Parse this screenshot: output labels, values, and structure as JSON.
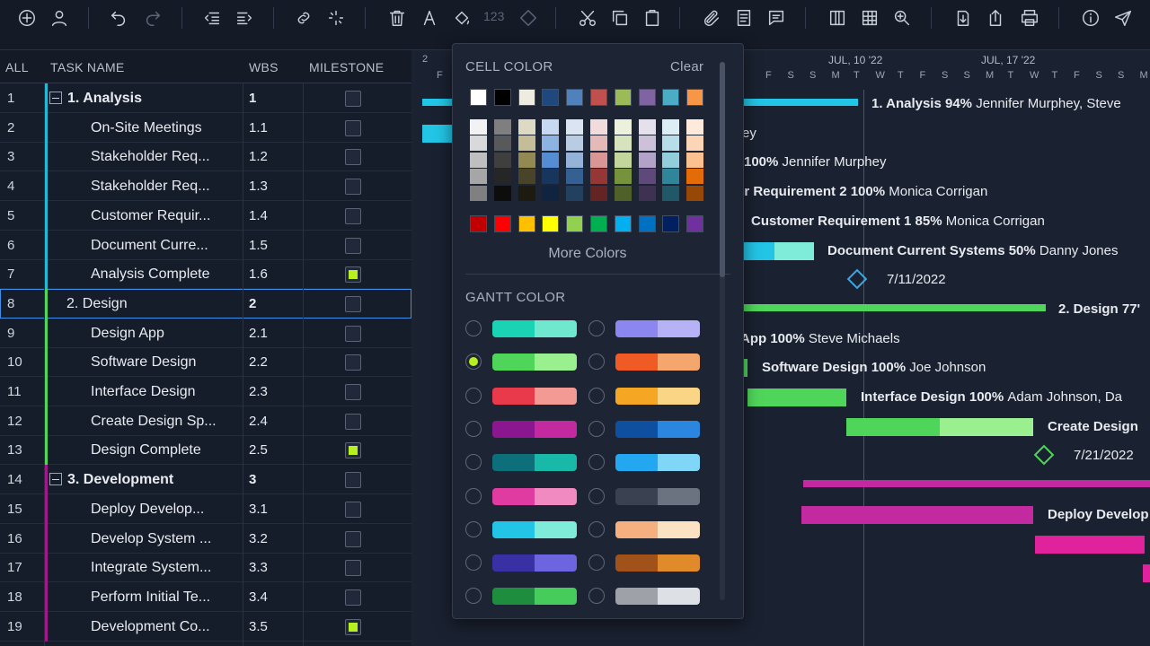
{
  "toolbar": {
    "counter": "123"
  },
  "grid": {
    "headers": {
      "all": "ALL",
      "task_name": "TASK NAME",
      "wbs": "WBS",
      "milestone": "MILESTONE"
    },
    "rows": [
      {
        "num": "1",
        "name": "1. Analysis",
        "wbs": "1",
        "milestone": false,
        "summary": true,
        "color": "#22b8d6"
      },
      {
        "num": "2",
        "name": "On-Site Meetings",
        "wbs": "1.1",
        "milestone": false,
        "summary": false,
        "color": "#22b8d6"
      },
      {
        "num": "3",
        "name": "Stakeholder Req...",
        "wbs": "1.2",
        "milestone": false,
        "summary": false,
        "color": "#22b8d6"
      },
      {
        "num": "4",
        "name": "Stakeholder Req...",
        "wbs": "1.3",
        "milestone": false,
        "summary": false,
        "color": "#22b8d6"
      },
      {
        "num": "5",
        "name": "Customer Requir...",
        "wbs": "1.4",
        "milestone": false,
        "summary": false,
        "color": "#22b8d6"
      },
      {
        "num": "6",
        "name": "Document Curre...",
        "wbs": "1.5",
        "milestone": false,
        "summary": false,
        "color": "#22b8d6"
      },
      {
        "num": "7",
        "name": "Analysis Complete",
        "wbs": "1.6",
        "milestone": true,
        "summary": false,
        "color": "#22b8d6"
      },
      {
        "num": "8",
        "name": "2. Design",
        "wbs": "2",
        "milestone": false,
        "summary": true,
        "color": "#4fd65a"
      },
      {
        "num": "9",
        "name": "Design App",
        "wbs": "2.1",
        "milestone": false,
        "summary": false,
        "color": "#4fd65a"
      },
      {
        "num": "10",
        "name": "Software Design",
        "wbs": "2.2",
        "milestone": false,
        "summary": false,
        "color": "#4fd65a"
      },
      {
        "num": "11",
        "name": "Interface Design",
        "wbs": "2.3",
        "milestone": false,
        "summary": false,
        "color": "#4fd65a"
      },
      {
        "num": "12",
        "name": "Create Design Sp...",
        "wbs": "2.4",
        "milestone": false,
        "summary": false,
        "color": "#4fd65a"
      },
      {
        "num": "13",
        "name": "Design Complete",
        "wbs": "2.5",
        "milestone": true,
        "summary": false,
        "color": "#4fd65a"
      },
      {
        "num": "14",
        "name": "3. Development",
        "wbs": "3",
        "milestone": false,
        "summary": true,
        "color": "#a0198a"
      },
      {
        "num": "15",
        "name": "Deploy Develop...",
        "wbs": "3.1",
        "milestone": false,
        "summary": false,
        "color": "#a0198a"
      },
      {
        "num": "16",
        "name": "Develop System ...",
        "wbs": "3.2",
        "milestone": false,
        "summary": false,
        "color": "#a0198a"
      },
      {
        "num": "17",
        "name": "Integrate System...",
        "wbs": "3.3",
        "milestone": false,
        "summary": false,
        "color": "#a0198a"
      },
      {
        "num": "18",
        "name": "Perform Initial Te...",
        "wbs": "3.4",
        "milestone": false,
        "summary": false,
        "color": "#a0198a"
      },
      {
        "num": "19",
        "name": "Development Co...",
        "wbs": "3.5",
        "milestone": true,
        "summary": false,
        "color": "#a0198a"
      }
    ]
  },
  "gantt": {
    "months": [
      "JUL, 10 '22",
      "JUL, 17 '22"
    ],
    "days_left": [
      "2",
      "F"
    ],
    "days": [
      "F",
      "S",
      "S",
      "M",
      "T",
      "W",
      "T",
      "F",
      "S",
      "S",
      "M",
      "T",
      "W",
      "T",
      "F",
      "S",
      "S",
      "M",
      "T"
    ],
    "labels": {
      "analysis": {
        "name": "1. Analysis",
        "pct": "94%",
        "who": "Jennifer Murphey, Steve"
      },
      "onsite": {
        "name": "",
        "pct": "",
        "who": "ey"
      },
      "sreq1": {
        "name": "",
        "pct": "100%",
        "who": "Jennifer Murphey"
      },
      "sreq2": {
        "name": "er Requirement 2",
        "pct": "100%",
        "who": "Monica Corrigan"
      },
      "creq": {
        "name": "Customer Requirement 1",
        "pct": "85%",
        "who": "Monica Corrigan"
      },
      "doc": {
        "name": "Document Current Systems",
        "pct": "50%",
        "who": "Danny Jones"
      },
      "ms1": "7/11/2022",
      "design": {
        "name": "2. Design",
        "pct": "77'"
      },
      "app": {
        "name": "App",
        "pct": "100%",
        "who": "Steve Michaels"
      },
      "soft": {
        "name": "Software Design",
        "pct": "100%",
        "who": "Joe Johnson"
      },
      "iface": {
        "name": "Interface Design",
        "pct": "100%",
        "who": "Adam Johnson, Da"
      },
      "cds": {
        "name": "Create Design"
      },
      "ms2": "7/21/2022",
      "deploy": {
        "name": "Deploy Develop"
      }
    }
  },
  "popup": {
    "cell_color_title": "CELL COLOR",
    "clear": "Clear",
    "more_colors": "More Colors",
    "gantt_color_title": "GANTT COLOR",
    "top_swatches": [
      "#ffffff",
      "#000000",
      "#eeece1",
      "#1f497d",
      "#4f81bd",
      "#c0504d",
      "#9bbb59",
      "#8064a2",
      "#4bacc6",
      "#f79646"
    ],
    "tint_columns": [
      [
        "#f2f2f2",
        "#d9d9d9",
        "#bfbfbf",
        "#a6a6a6",
        "#808080"
      ],
      [
        "#7f7f7f",
        "#595959",
        "#3f3f3f",
        "#262626",
        "#0d0d0d"
      ],
      [
        "#ddd9c3",
        "#c4bd97",
        "#938953",
        "#494429",
        "#1d1b10"
      ],
      [
        "#c6d9f0",
        "#8db3e2",
        "#548dd4",
        "#17365d",
        "#0f243e"
      ],
      [
        "#dbe5f1",
        "#b8cce4",
        "#95b3d7",
        "#366092",
        "#244061"
      ],
      [
        "#f2dcdb",
        "#e5b9b7",
        "#d99694",
        "#953734",
        "#632423"
      ],
      [
        "#ebf1dd",
        "#d7e3bc",
        "#c3d69b",
        "#76923c",
        "#4f6128"
      ],
      [
        "#e5e0ec",
        "#ccc1d9",
        "#b2a2c7",
        "#5f497a",
        "#3f3151"
      ],
      [
        "#dbeef3",
        "#b7dde8",
        "#92cddc",
        "#31859b",
        "#205867"
      ],
      [
        "#fdeada",
        "#fbd5b5",
        "#fac08f",
        "#e36c09",
        "#974806"
      ]
    ],
    "standard_swatches": [
      "#c00000",
      "#ff0000",
      "#ffc000",
      "#ffff00",
      "#92d050",
      "#00b050",
      "#00b0f0",
      "#0070c0",
      "#002060",
      "#7030a0"
    ],
    "gantt_left": [
      [
        "#1ad3b4",
        "#6fe8cf"
      ],
      [
        "#4fd65a",
        "#9af08f"
      ],
      [
        "#e83a4a",
        "#f39a95"
      ],
      [
        "#8a1690",
        "#c42aa0"
      ],
      [
        "#0d6f7a",
        "#18b9a8"
      ],
      [
        "#e03ba0",
        "#f08ac0"
      ],
      [
        "#22c5e6",
        "#7eecd9"
      ],
      [
        "#3930a4",
        "#6d64e0"
      ],
      [
        "#1e8e3e",
        "#45cc5a"
      ]
    ],
    "gantt_right": [
      [
        "#8c86f0",
        "#b7b1f5"
      ],
      [
        "#f05a24",
        "#f5a66d"
      ],
      [
        "#f5a623",
        "#fad585"
      ],
      [
        "#0e4fa0",
        "#2a86de"
      ],
      [
        "#22a7f0",
        "#7fd6f7"
      ],
      [
        "#3a4252",
        "#6b7380"
      ],
      [
        "#f6b07f",
        "#fbe2c3"
      ],
      [
        "#a0521a",
        "#e08a2a"
      ],
      [
        "#9ea2a8",
        "#dde0e4"
      ]
    ],
    "selected_gantt": 1
  }
}
